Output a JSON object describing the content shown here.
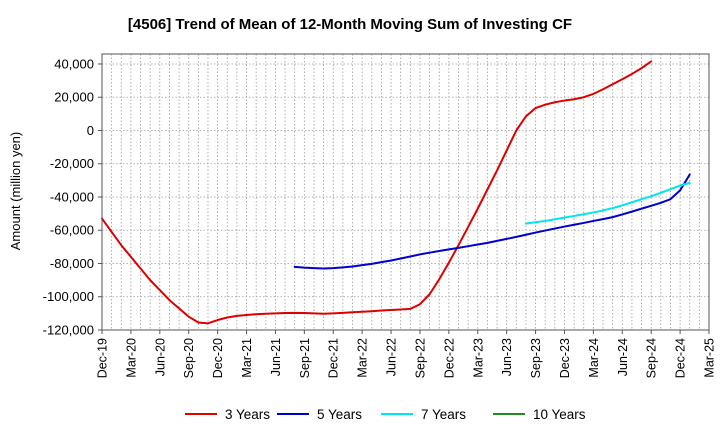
{
  "chart_data": {
    "type": "line",
    "title": "[4506]  Trend of Mean of 12-Month Moving Sum of Investing CF",
    "xlabel": "",
    "ylabel": "Amount (million yen)",
    "ylim": [
      -120000,
      46000
    ],
    "yticks": [
      40000,
      20000,
      0,
      -20000,
      -40000,
      -60000,
      -80000,
      -100000,
      -120000
    ],
    "ytick_labels": [
      "40,000",
      "20,000",
      "0",
      "-20,000",
      "-40,000",
      "-60,000",
      "-80,000",
      "-100,000",
      "-120,000"
    ],
    "xticks": [
      "Dec-19",
      "Mar-20",
      "Jun-20",
      "Sep-20",
      "Dec-20",
      "Mar-21",
      "Jun-21",
      "Sep-21",
      "Dec-21",
      "Mar-22",
      "Jun-22",
      "Sep-22",
      "Dec-22",
      "Mar-23",
      "Jun-23",
      "Sep-23",
      "Dec-23",
      "Mar-24",
      "Jun-24",
      "Sep-24",
      "Dec-24",
      "Mar-25"
    ],
    "grid": true,
    "legend_position": "bottom",
    "series": [
      {
        "name": "3 Years",
        "color": "#dd0000",
        "start": "Dec-19",
        "values": [
          -53000,
          -61000,
          -69000,
          -76000,
          -83000,
          -90000,
          -96000,
          -102000,
          -107000,
          -112000,
          -115500,
          -116000,
          -114000,
          -112500,
          -111500,
          -111000,
          -110500,
          -110200,
          -110000,
          -109800,
          -109700,
          -109800,
          -110000,
          -110200,
          -110000,
          -109700,
          -109300,
          -109000,
          -108700,
          -108300,
          -108000,
          -107700,
          -107300,
          -104500,
          -98500,
          -89500,
          -79500,
          -69000,
          -58000,
          -47000,
          -35500,
          -24000,
          -12000,
          0,
          8500,
          13500,
          15500,
          17000,
          18000,
          18800,
          20000,
          22000,
          24800,
          27800,
          30800,
          34000,
          37500,
          41500
        ]
      },
      {
        "name": "5 Years",
        "color": "#0000cc",
        "start": "Aug-21",
        "values": [
          -82000,
          -82500,
          -82800,
          -83000,
          -82800,
          -82300,
          -81800,
          -81000,
          -80200,
          -79200,
          -78200,
          -77000,
          -75800,
          -74500,
          -73500,
          -72500,
          -71500,
          -70600,
          -69600,
          -68600,
          -67600,
          -66400,
          -65200,
          -64000,
          -62700,
          -61400,
          -60200,
          -59000,
          -57800,
          -56700,
          -55600,
          -54400,
          -53300,
          -52100,
          -50500,
          -48800,
          -47000,
          -45300,
          -43500,
          -41300,
          -36000,
          -26500
        ]
      },
      {
        "name": "7 Years",
        "color": "#00e5ee",
        "start": "Aug-23",
        "values": [
          -56000,
          -55200,
          -54400,
          -53400,
          -52400,
          -51400,
          -50400,
          -49300,
          -48100,
          -46700,
          -45000,
          -43200,
          -41300,
          -39500,
          -37500,
          -35300,
          -33100,
          -31500
        ]
      },
      {
        "name": "10 Years",
        "color": "#228b22",
        "start": "Aug-23",
        "values": []
      }
    ]
  }
}
